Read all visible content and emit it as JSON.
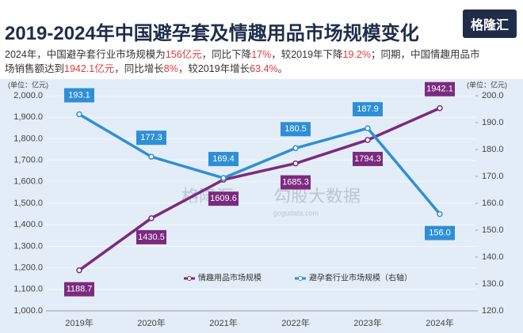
{
  "header": {
    "logo": "格隆汇"
  },
  "watermark": {
    "brand": "格隆汇",
    "site": "gogudata.com",
    "name": "勾股大数据"
  },
  "chart_data": {
    "type": "line",
    "title": "2019-2024年中国避孕套及情趣用品市场规模变化",
    "subtitle": [
      {
        "text": "2024年，中国避孕套行业市场规模为",
        "color": "#333333"
      },
      {
        "text": "156亿元",
        "color": "#e0393e"
      },
      {
        "text": "，同比下降",
        "color": "#333333"
      },
      {
        "text": "17%",
        "color": "#e0393e"
      },
      {
        "text": "，较2019年下降",
        "color": "#333333"
      },
      {
        "text": "19.2%",
        "color": "#e0393e"
      },
      {
        "text": "；同期，中国情趣用品市场销售额达到",
        "color": "#333333"
      },
      {
        "text": "1942.1亿元",
        "color": "#e0393e"
      },
      {
        "text": "，同比增长",
        "color": "#333333"
      },
      {
        "text": "8%",
        "color": "#e0393e"
      },
      {
        "text": "，较2019年增长",
        "color": "#333333"
      },
      {
        "text": "63.4%",
        "color": "#e0393e"
      },
      {
        "text": "。",
        "color": "#333333"
      }
    ],
    "y_unit": "(单位：亿元)",
    "y2_unit": "(单位：亿元)",
    "categories": [
      "2019年",
      "2020年",
      "2021年",
      "2022年",
      "2023年",
      "2024年"
    ],
    "series": [
      {
        "name": "情趣用品市场规模",
        "color": "#7b2a7f",
        "values": [
          1188.7,
          1430.5,
          1609.6,
          1685.3,
          1794.3,
          1942.1
        ],
        "value_labels": [
          "1188.7",
          "1430.5",
          "1609.6",
          "1685.3",
          "1794.3",
          "1942.1"
        ]
      },
      {
        "name": "避孕套行业市场规模（右轴）",
        "color": "#2f8fd6",
        "axis": "y2",
        "values": [
          193.1,
          177.3,
          169.4,
          180.5,
          187.9,
          156.0
        ],
        "value_labels": [
          "193.1",
          "177.3",
          "169.4",
          "180.5",
          "187.9",
          "156.0"
        ]
      }
    ],
    "ylim": [
      1000,
      2000
    ],
    "yticks": [
      {
        "value": 1000,
        "label": "1,000.0"
      },
      {
        "value": 1100,
        "label": "1,100.0"
      },
      {
        "value": 1200,
        "label": "1,200.0"
      },
      {
        "value": 1300,
        "label": "1,300.0"
      },
      {
        "value": 1400,
        "label": "1,400.0"
      },
      {
        "value": 1500,
        "label": "1,500.0"
      },
      {
        "value": 1600,
        "label": "1,600.0"
      },
      {
        "value": 1700,
        "label": "1,700.0"
      },
      {
        "value": 1800,
        "label": "1,800.0"
      },
      {
        "value": 1900,
        "label": "1,900.0"
      },
      {
        "value": 2000,
        "label": "2,000.0"
      }
    ],
    "y2lim": [
      120,
      200
    ],
    "y2ticks": [
      {
        "value": 120,
        "label": "120.0"
      },
      {
        "value": 130,
        "label": "130.0"
      },
      {
        "value": 140,
        "label": "140.0"
      },
      {
        "value": 150,
        "label": "150.0"
      },
      {
        "value": 160,
        "label": "160.0"
      },
      {
        "value": 170,
        "label": "170.0"
      },
      {
        "value": 180,
        "label": "180.0"
      },
      {
        "value": 190,
        "label": "190.0"
      },
      {
        "value": 200,
        "label": "200.0"
      }
    ],
    "grid": true,
    "legend": "bottom"
  }
}
